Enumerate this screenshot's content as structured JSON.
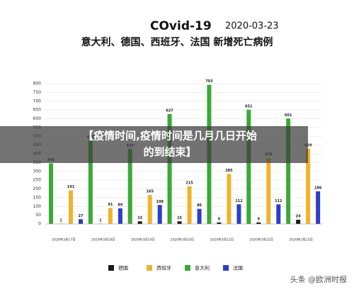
{
  "chart_data": {
    "type": "bar",
    "title": "COvid-19",
    "date": "2020-03-23",
    "subtitle": "意大利、德国、西班牙、法国 新增死亡病例",
    "categories": [
      "2020年3月17日",
      "2020年3月18日",
      "2020年3月19日",
      "2020年3月20日",
      "2020年3月21日",
      "2020年3月22日",
      "2020年3月23日"
    ],
    "series": [
      {
        "name": "德国",
        "color": "#1a1a1a",
        "values": [
          1,
          1,
          15,
          15,
          9,
          9,
          24
        ]
      },
      {
        "name": "西班牙",
        "color": "#f0b429",
        "values": [
          191,
          91,
          165,
          215,
          285,
          375,
          429
        ]
      },
      {
        "name": "意大利",
        "color": "#3aaa35",
        "values": [
          345,
          475,
          427,
          627,
          793,
          651,
          601
        ]
      },
      {
        "name": "法国",
        "color": "#2b3fc9",
        "values": [
          27,
          89,
          108,
          86,
          112,
          112,
          186
        ]
      }
    ],
    "ylim": [
      0,
      800
    ],
    "yticks": [
      0,
      50,
      100,
      150,
      200,
      250,
      300,
      350,
      400,
      450,
      500,
      550,
      600,
      650,
      700,
      750,
      800
    ],
    "grid": true
  },
  "banner": [
    "【疫情时间,疫情时间是几月几日开始",
    "的到结束】"
  ],
  "watermark": "头条 @欧洲时报"
}
